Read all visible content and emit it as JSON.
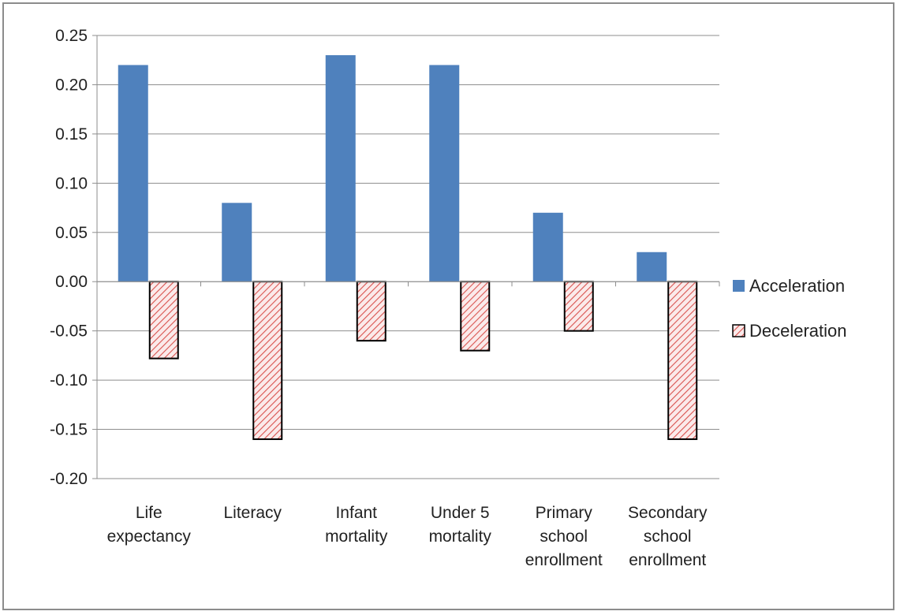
{
  "chart_data": {
    "type": "bar",
    "categories": [
      [
        "Life",
        "expectancy"
      ],
      [
        "Literacy"
      ],
      [
        "Infant",
        "mortality"
      ],
      [
        "Under 5",
        "mortality"
      ],
      [
        "Primary",
        "school",
        "enrollment"
      ],
      [
        "Secondary",
        "school",
        "enrollment"
      ]
    ],
    "series": [
      {
        "name": "Acceleration",
        "color": "#4f81bd",
        "pattern": "solid",
        "values": [
          0.22,
          0.08,
          0.23,
          0.22,
          0.07,
          0.03
        ]
      },
      {
        "name": "Deceleration",
        "color": "#d9534f",
        "pattern": "diagonal-hatch",
        "values": [
          -0.078,
          -0.16,
          -0.06,
          -0.07,
          -0.05,
          -0.16
        ]
      }
    ],
    "ylim": [
      -0.2,
      0.25
    ],
    "yticks": [
      "0.25",
      "0.20",
      "0.15",
      "0.10",
      "0.05",
      "0.00",
      "-0.05",
      "-0.10",
      "-0.15",
      "-0.20"
    ],
    "grid": true,
    "legend_position": "right",
    "title": "",
    "xlabel": "",
    "ylabel": ""
  }
}
